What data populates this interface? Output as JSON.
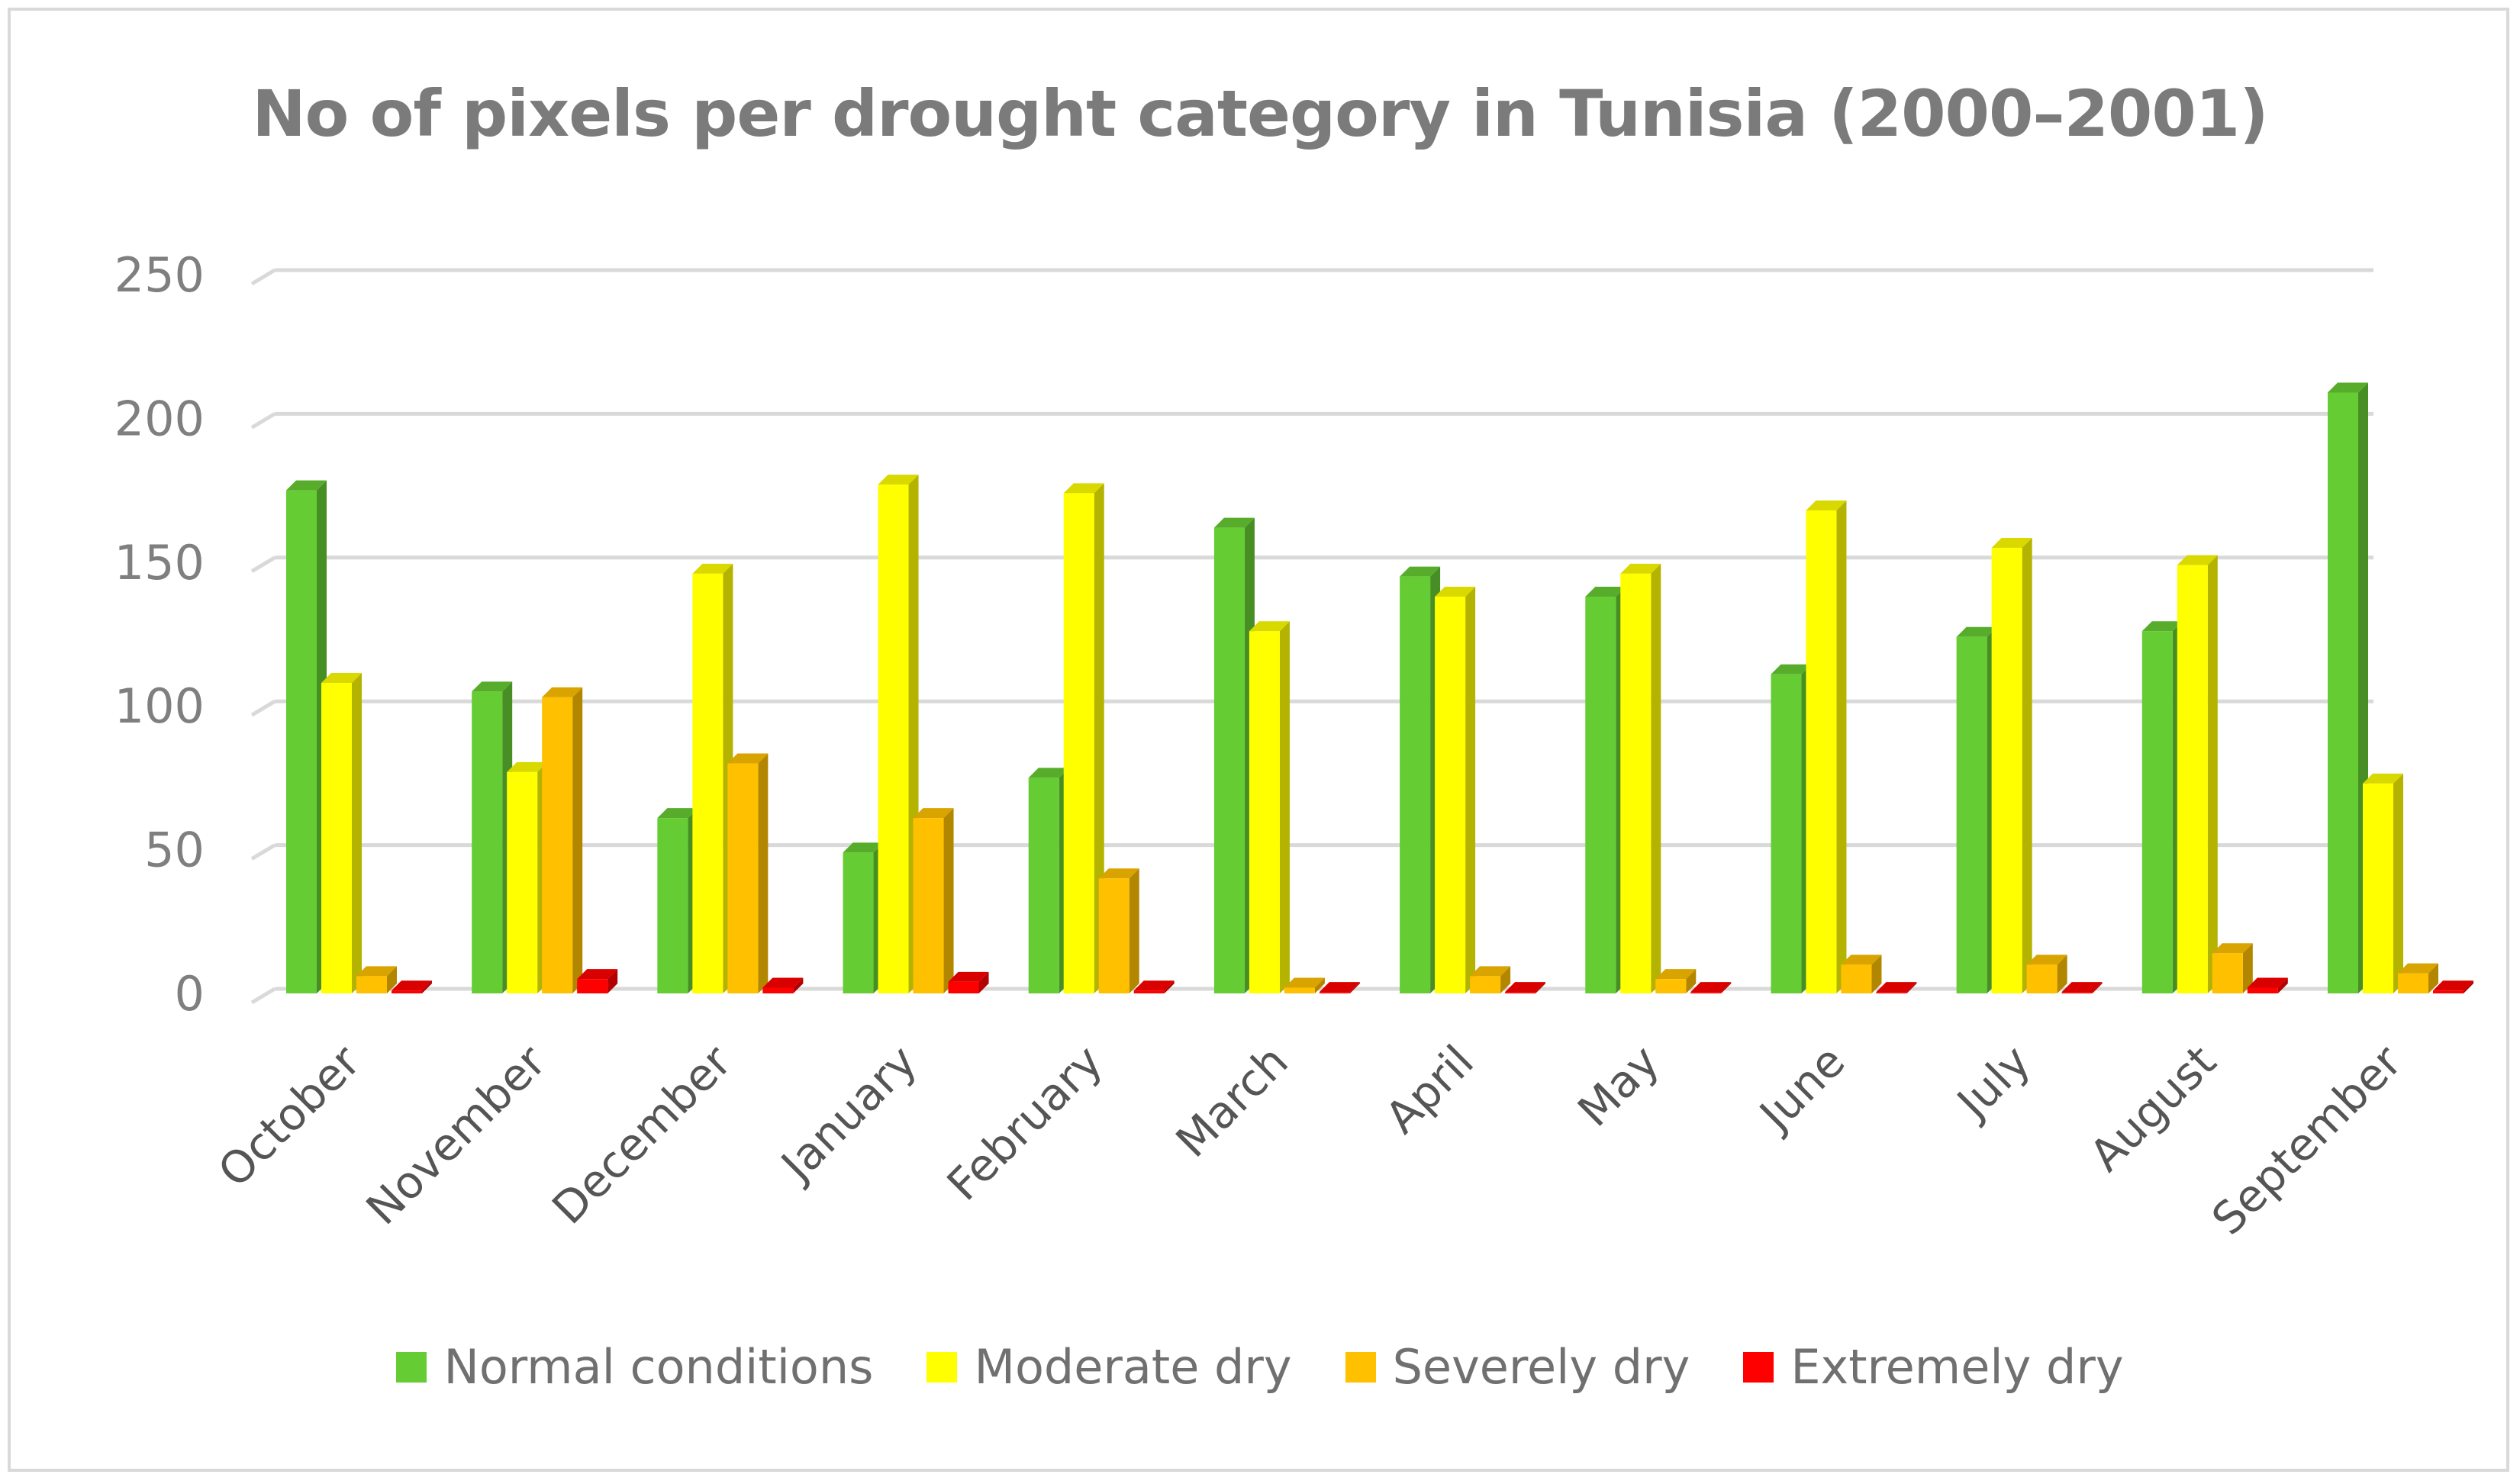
{
  "chart_data": {
    "type": "bar",
    "title": "No of pixels per drought category in Tunisia (2000–2001)",
    "xlabel": "",
    "ylabel": "",
    "ylim": [
      0,
      250
    ],
    "yticks": [
      0,
      50,
      100,
      150,
      200,
      250
    ],
    "grid": true,
    "legend_position": "bottom",
    "categories": [
      "October",
      "November",
      "December",
      "January",
      "February",
      "March",
      "April",
      "May",
      "June",
      "July",
      "August",
      "September"
    ],
    "series": [
      {
        "name": "Normal conditions",
        "color": "#66cc33",
        "values": [
          175,
          105,
          61,
          49,
          75,
          162,
          145,
          138,
          111,
          124,
          126,
          209
        ]
      },
      {
        "name": "Moderate dry",
        "color": "#ffff00",
        "values": [
          108,
          77,
          146,
          177,
          174,
          126,
          138,
          146,
          168,
          155,
          149,
          73
        ]
      },
      {
        "name": "Severely dry",
        "color": "#ffc000",
        "values": [
          6,
          103,
          80,
          61,
          40,
          2,
          6,
          5,
          10,
          10,
          14,
          7
        ]
      },
      {
        "name": "Extremely dry",
        "color": "#ff0000",
        "values": [
          1,
          5,
          2,
          4,
          1,
          0.5,
          0.5,
          0.5,
          0.5,
          0.5,
          2,
          1
        ]
      }
    ]
  }
}
